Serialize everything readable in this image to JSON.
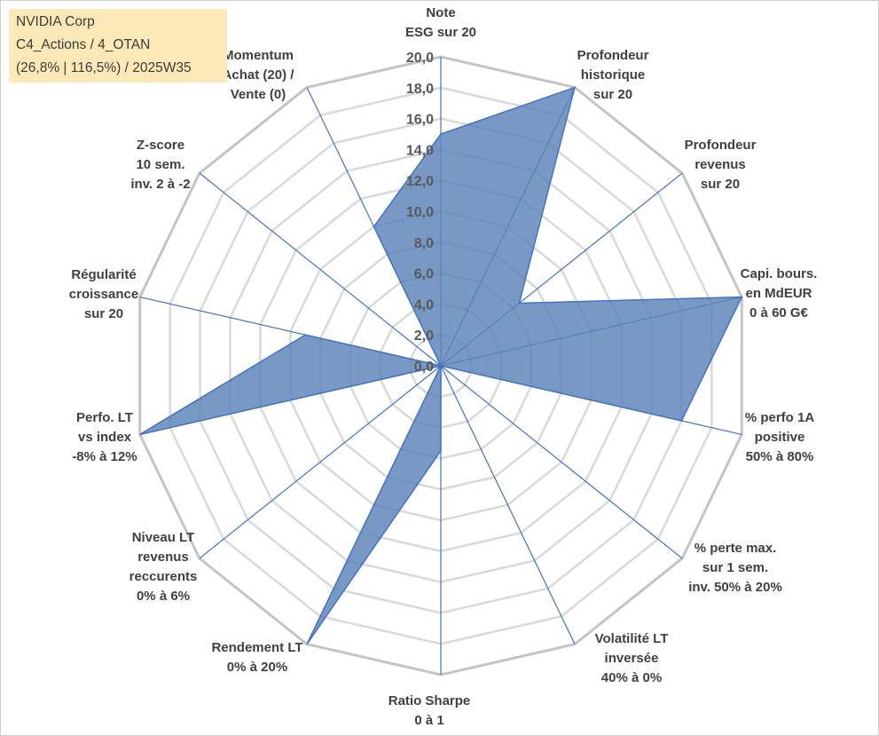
{
  "info": {
    "line1": "NVIDIA Corp",
    "line2": "C4_Actions / 4_OTAN",
    "line3": "(26,8% | 116,5%) / 2025W35"
  },
  "chart_data": {
    "type": "radar",
    "rmin": 0,
    "rmax": 20,
    "tick_step": 2,
    "tick_labels": [
      "0,0",
      "2,0",
      "4,0",
      "6,0",
      "8,0",
      "10,0",
      "12,0",
      "14,0",
      "16,0",
      "18,0",
      "20,0"
    ],
    "grid": true,
    "categories": [
      [
        "Note",
        "ESG sur 20"
      ],
      [
        "Profondeur",
        "historique",
        "sur 20"
      ],
      [
        "Profondeur",
        "revenus",
        "sur 20"
      ],
      [
        "Capi. bours.",
        "en MdEUR",
        "0 à 60 G€"
      ],
      [
        "% perfo 1A",
        "positive",
        "50% à 80%"
      ],
      [
        "% perte max.",
        "sur 1 sem.",
        "inv. 50% à 20%"
      ],
      [
        "Volatilité LT",
        "inversée",
        "40% à 0%"
      ],
      [
        "Ratio Sharpe",
        "0 à 1"
      ],
      [
        "Rendement LT",
        "0% à 20%"
      ],
      [
        "Niveau LT",
        "revenus",
        "reccurents",
        "0% à 6%"
      ],
      [
        "Perfo. LT",
        "vs index",
        "-8% à 12%"
      ],
      [
        "Régularité",
        "croissance",
        "sur 20"
      ],
      [
        "Z-score",
        "10 sem.",
        "inv. 2 à -2"
      ],
      [
        "Momentum",
        "Achat (20) /",
        "Vente (0)"
      ]
    ],
    "series": [
      {
        "values": [
          15,
          20,
          6.5,
          20,
          16,
          0,
          0,
          5.5,
          20,
          0,
          20,
          9,
          0,
          10
        ]
      }
    ],
    "colors": {
      "fill": "#5b83b8",
      "line": "#4472c4",
      "grid": "#bfbfbf",
      "axis": "#4472c4"
    }
  }
}
